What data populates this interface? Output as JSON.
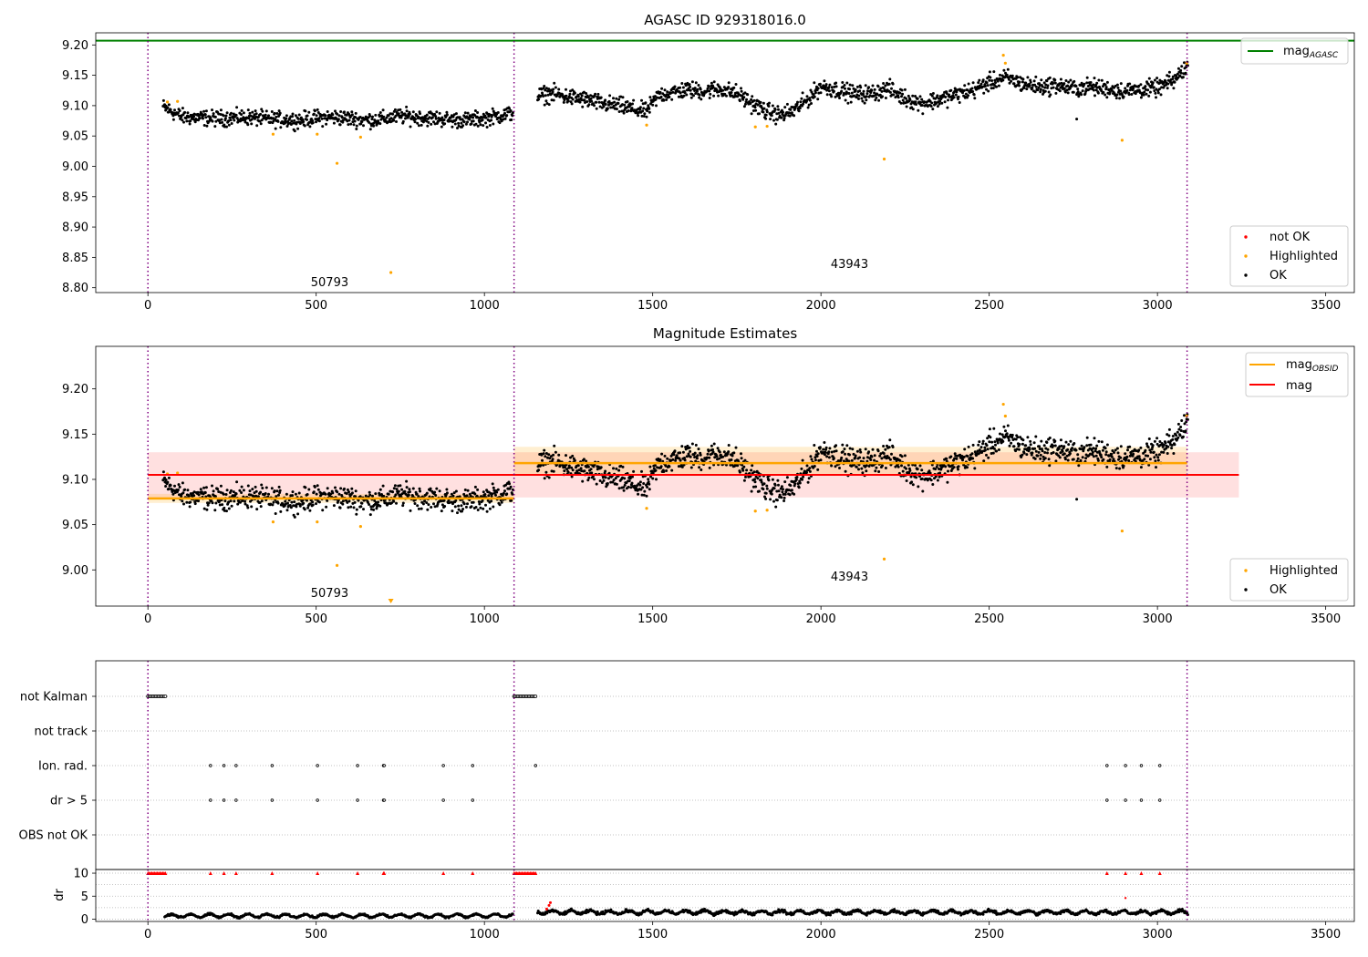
{
  "chart_data": [
    {
      "type": "scatter",
      "title": "AGASC ID 929318016.0",
      "xlim": [
        -155,
        3585
      ],
      "ylim": [
        8.792,
        9.22
      ],
      "xticks": [
        0,
        500,
        1000,
        1500,
        2000,
        2500,
        3000,
        3500
      ],
      "yticks": [
        8.8,
        8.85,
        8.9,
        8.95,
        9.0,
        9.05,
        9.1,
        9.15,
        9.2
      ],
      "ytick_labels": [
        "8.80",
        "8.85",
        "8.90",
        "8.95",
        "9.00",
        "9.05",
        "9.10",
        "9.15",
        "9.20"
      ],
      "grid": false,
      "line_legend": {
        "placement": "top-right",
        "entries": [
          {
            "label": "mag",
            "subscript": "AGASC",
            "color": "#008000"
          }
        ]
      },
      "point_legend": {
        "placement": "bottom-right",
        "entries": [
          {
            "label": "not OK",
            "color": "#ff0000"
          },
          {
            "label": "Highlighted",
            "color": "#ffa500"
          },
          {
            "label": "OK",
            "color": "#000000"
          }
        ]
      },
      "mag_agasc": 9.207,
      "obsid_boundaries": [
        0,
        1088,
        3088
      ],
      "obsid_labels": [
        {
          "text": "50793",
          "x": 540,
          "y": 8.81
        },
        {
          "text": "43943",
          "x": 2085,
          "y": 8.84
        }
      ],
      "ok_segments": [
        {
          "x_start": 45,
          "x_end": 1085,
          "points": [
            [
              45,
              9.098
            ],
            [
              100,
              9.082
            ],
            [
              150,
              9.08
            ],
            [
              200,
              9.079
            ],
            [
              250,
              9.08
            ],
            [
              300,
              9.081
            ],
            [
              350,
              9.078
            ],
            [
              400,
              9.077
            ],
            [
              450,
              9.076
            ],
            [
              500,
              9.08
            ],
            [
              550,
              9.081
            ],
            [
              600,
              9.079
            ],
            [
              650,
              9.076
            ],
            [
              700,
              9.078
            ],
            [
              750,
              9.083
            ],
            [
              800,
              9.081
            ],
            [
              850,
              9.079
            ],
            [
              900,
              9.077
            ],
            [
              950,
              9.076
            ],
            [
              1000,
              9.079
            ],
            [
              1050,
              9.084
            ],
            [
              1085,
              9.088
            ]
          ],
          "spread": 0.011
        },
        {
          "x_start": 1158,
          "x_end": 3090,
          "points": [
            [
              1158,
              9.116
            ],
            [
              1200,
              9.12
            ],
            [
              1250,
              9.114
            ],
            [
              1300,
              9.11
            ],
            [
              1350,
              9.103
            ],
            [
              1400,
              9.1
            ],
            [
              1450,
              9.093
            ],
            [
              1480,
              9.09
            ],
            [
              1520,
              9.118
            ],
            [
              1600,
              9.126
            ],
            [
              1650,
              9.124
            ],
            [
              1700,
              9.128
            ],
            [
              1750,
              9.12
            ],
            [
              1800,
              9.102
            ],
            [
              1840,
              9.09
            ],
            [
              1880,
              9.084
            ],
            [
              1920,
              9.092
            ],
            [
              1960,
              9.11
            ],
            [
              2000,
              9.132
            ],
            [
              2050,
              9.126
            ],
            [
              2100,
              9.119
            ],
            [
              2150,
              9.12
            ],
            [
              2200,
              9.128
            ],
            [
              2250,
              9.112
            ],
            [
              2300,
              9.104
            ],
            [
              2350,
              9.11
            ],
            [
              2400,
              9.118
            ],
            [
              2450,
              9.125
            ],
            [
              2500,
              9.138
            ],
            [
              2550,
              9.146
            ],
            [
              2600,
              9.136
            ],
            [
              2650,
              9.131
            ],
            [
              2700,
              9.134
            ],
            [
              2750,
              9.128
            ],
            [
              2800,
              9.131
            ],
            [
              2850,
              9.128
            ],
            [
              2900,
              9.124
            ],
            [
              2950,
              9.127
            ],
            [
              3000,
              9.129
            ],
            [
              3050,
              9.142
            ],
            [
              3090,
              9.166
            ]
          ],
          "spread": 0.012
        },
        {
          "x_start": 0,
          "x_end": 0,
          "points": [
            [
              2760,
              9.078
            ]
          ],
          "spread": 0
        }
      ],
      "highlighted": [
        [
          58,
          9.106
        ],
        [
          88,
          9.107
        ],
        [
          372,
          9.053
        ],
        [
          503,
          9.053
        ],
        [
          562,
          9.005
        ],
        [
          632,
          9.048
        ],
        [
          722,
          8.825
        ],
        [
          1482,
          9.068
        ],
        [
          1805,
          9.065
        ],
        [
          1840,
          9.066
        ],
        [
          2188,
          9.012
        ],
        [
          2542,
          9.183
        ],
        [
          2548,
          9.17
        ],
        [
          2895,
          9.043
        ],
        [
          3087,
          9.17
        ]
      ]
    },
    {
      "type": "scatter",
      "title": "Magnitude Estimates",
      "xlim": [
        -155,
        3585
      ],
      "ylim": [
        8.96,
        9.247
      ],
      "xticks": [
        0,
        500,
        1000,
        1500,
        2000,
        2500,
        3000,
        3500
      ],
      "yticks": [
        9.0,
        9.05,
        9.1,
        9.15,
        9.2
      ],
      "ytick_labels": [
        "9.00",
        "9.05",
        "9.10",
        "9.15",
        "9.20"
      ],
      "grid": false,
      "line_legend": {
        "placement": "top-right",
        "entries": [
          {
            "label": "mag",
            "subscript": "OBSID",
            "color": "#ffa500"
          },
          {
            "label": "mag",
            "subscript": "",
            "color": "#ff0000"
          }
        ]
      },
      "point_legend": {
        "placement": "bottom-right",
        "entries": [
          {
            "label": "Highlighted",
            "color": "#ffa500"
          },
          {
            "label": "OK",
            "color": "#000000"
          }
        ]
      },
      "mag": {
        "value": 9.105,
        "band": [
          9.08,
          9.13
        ],
        "x_start": 0,
        "x_end": 3242,
        "color": "#ff0000"
      },
      "mag_obsid": [
        {
          "value": 9.079,
          "band": [
            9.074,
            9.084
          ],
          "x_start": 0,
          "x_end": 1088
        },
        {
          "value": 9.118,
          "band": [
            9.104,
            9.136
          ],
          "x_start": 1088,
          "x_end": 3088
        }
      ],
      "obsid_boundaries": [
        0,
        1088,
        3088
      ],
      "obsid_labels": [
        {
          "text": "50793",
          "x": 540,
          "y": 8.975
        },
        {
          "text": "43943",
          "x": 2085,
          "y": 8.993
        }
      ],
      "off_scale_marker": {
        "x": 722,
        "y": 8.965
      }
    },
    {
      "type": "scatter",
      "title": "",
      "xlim": [
        -155,
        3585
      ],
      "categories": [
        "not Kalman",
        "not track",
        "Ion. rad.",
        "dr > 5",
        "OBS not OK"
      ],
      "grid": true,
      "flags": {
        "not Kalman": [
          {
            "x_start": 0,
            "x_end": 52
          },
          {
            "x_start": 1088,
            "x_end": 1155
          }
        ],
        "not track": [],
        "Ion. rad.": [
          186,
          226,
          262,
          369,
          504,
          623,
          700,
          702,
          878,
          965,
          1152,
          2850,
          2905,
          2952,
          3007
        ],
        "dr > 5": [
          186,
          226,
          262,
          369,
          504,
          623,
          700,
          702,
          878,
          965,
          2850,
          2905,
          2952,
          3007
        ],
        "OBS not OK": []
      }
    },
    {
      "type": "scatter",
      "title": "",
      "xlim": [
        -155,
        3585
      ],
      "ylim": [
        -0.5,
        10.8
      ],
      "ylabel": "dr",
      "xticks": [
        0,
        500,
        1000,
        1500,
        2000,
        2500,
        3000,
        3500
      ],
      "yticks": [
        0,
        5,
        10
      ],
      "ytick_labels": [
        "0",
        "5",
        "10"
      ],
      "grid": true,
      "clipped_markers_at_10": [
        {
          "x_start": 0,
          "x_end": 52
        },
        {
          "x_start": 1088,
          "x_end": 1155
        },
        186,
        226,
        262,
        369,
        504,
        623,
        700,
        702,
        878,
        965,
        2850,
        2905,
        2952,
        3007
      ],
      "dr_segments": [
        {
          "x_start": 50,
          "x_end": 1085,
          "level": 0.75,
          "spread": 0.35
        },
        {
          "x_start": 1158,
          "x_end": 3090,
          "level": 1.5,
          "spread": 0.55
        }
      ],
      "red_spike": [
        [
          1185,
          2.2
        ],
        [
          1192,
          3.0
        ],
        [
          1196,
          3.6
        ]
      ],
      "extra_red": [
        [
          2905,
          4.6
        ]
      ]
    }
  ]
}
